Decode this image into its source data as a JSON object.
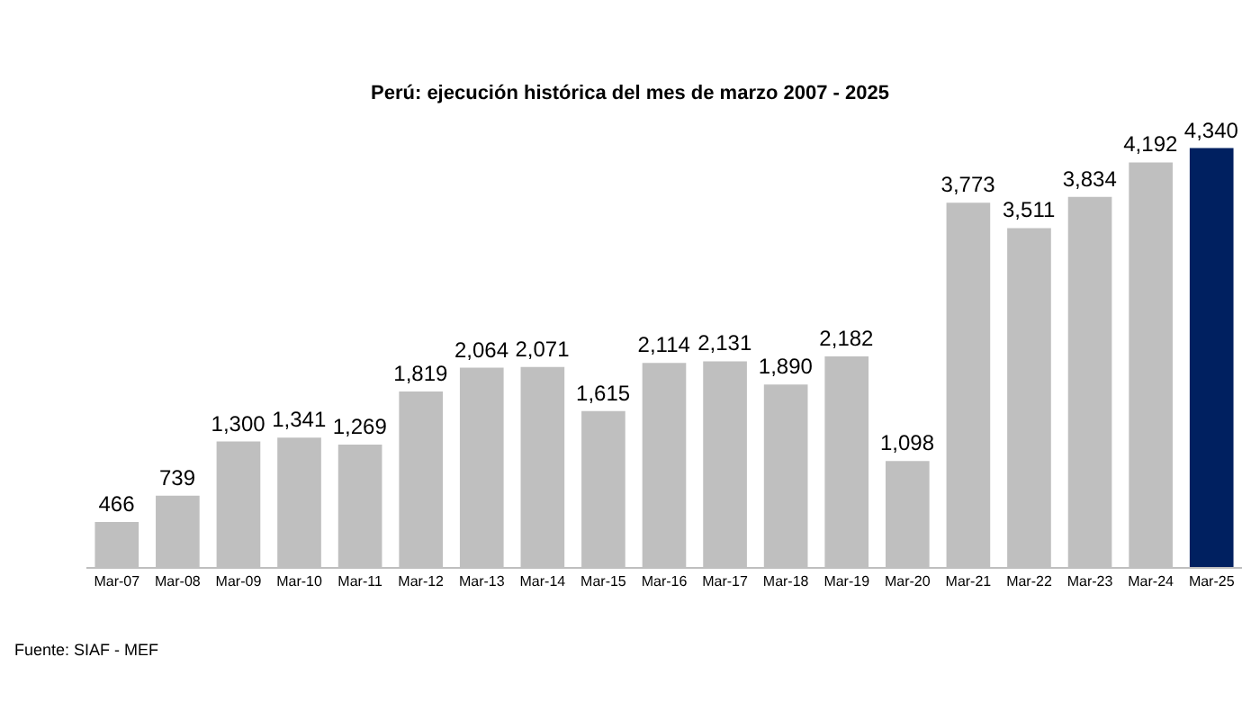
{
  "chart_data": {
    "type": "bar",
    "title": "Perú: ejecución histórica del mes de marzo 2007 - 2025",
    "categories": [
      "Mar-07",
      "Mar-08",
      "Mar-09",
      "Mar-10",
      "Mar-11",
      "Mar-12",
      "Mar-13",
      "Mar-14",
      "Mar-15",
      "Mar-16",
      "Mar-17",
      "Mar-18",
      "Mar-19",
      "Mar-20",
      "Mar-21",
      "Mar-22",
      "Mar-23",
      "Mar-24",
      "Mar-25"
    ],
    "values": [
      466,
      739,
      1300,
      1341,
      1269,
      1819,
      2064,
      2071,
      1615,
      2114,
      2131,
      1890,
      2182,
      1098,
      3773,
      3511,
      3834,
      4192,
      4340
    ],
    "colors": [
      "#bfbfbf",
      "#bfbfbf",
      "#bfbfbf",
      "#bfbfbf",
      "#bfbfbf",
      "#bfbfbf",
      "#bfbfbf",
      "#bfbfbf",
      "#bfbfbf",
      "#bfbfbf",
      "#bfbfbf",
      "#bfbfbf",
      "#bfbfbf",
      "#bfbfbf",
      "#bfbfbf",
      "#bfbfbf",
      "#bfbfbf",
      "#bfbfbf",
      "#002060"
    ],
    "value_labels": [
      "466",
      "739",
      "1,300",
      "1,341",
      "1,269",
      "1,819",
      "2,064",
      "2,071",
      "1,615",
      "2,114",
      "2,131",
      "1,890",
      "2,182",
      "1,098",
      "3,773",
      "3,511",
      "3,834",
      "4,192",
      "4,340"
    ],
    "annotations": [
      "Fuente: SIAF - MEF"
    ]
  }
}
